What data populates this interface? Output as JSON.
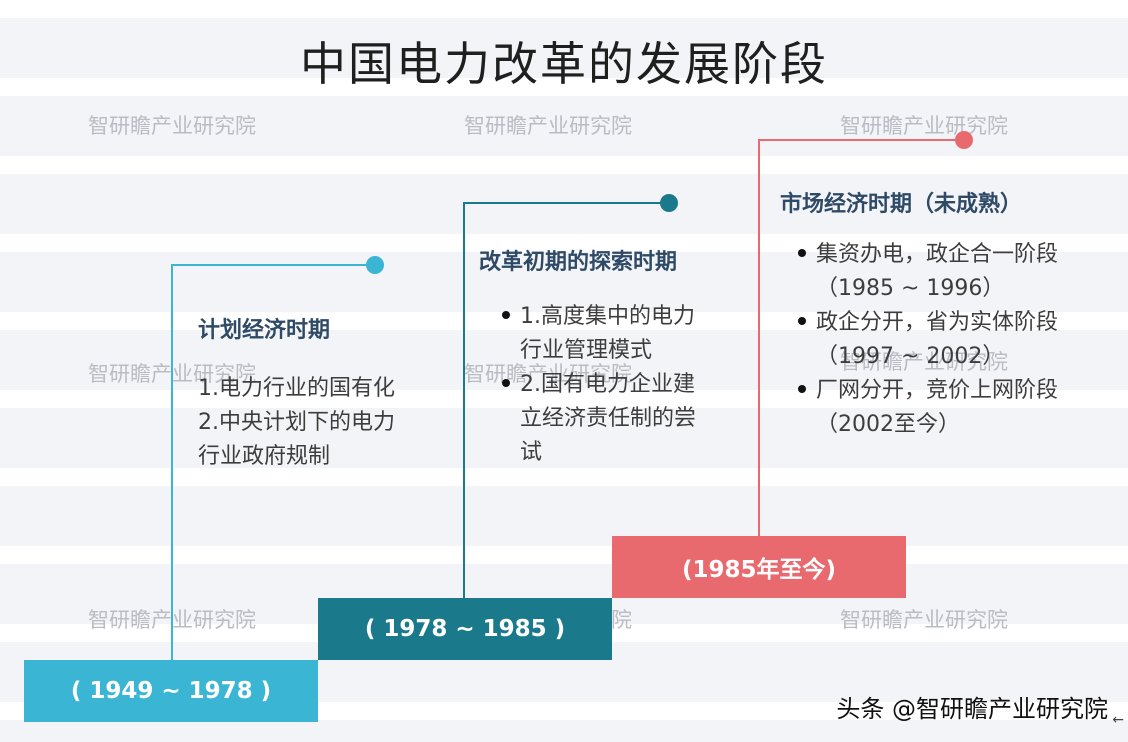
{
  "title": "中国电力改革的发展阶段",
  "watermark": "智研瞻产业研究院",
  "colors": {
    "stage1": "#3ab5d4",
    "stage2": "#1a7a8c",
    "stage3": "#e86a6f"
  },
  "stages": [
    {
      "heading": "计划经济时期",
      "period": "( 1949 ~ 1978 )",
      "items": [
        "1.电力行业的国有化",
        "2.中央计划下的电力行业政府规制"
      ]
    },
    {
      "heading": "改革初期的探索时期",
      "period": "( 1978 ~ 1985 )",
      "items": [
        "1.高度集中的电力行业管理模式",
        "2.国有电力企业建立经济责任制的尝试"
      ]
    },
    {
      "heading": "市场经济时期（未成熟）",
      "period": "(1985年至今)",
      "items": [
        "集资办电，政企合一阶段（1985 ~ 1996）",
        "政企分开，省为实体阶段（1997 ~ 2002）",
        "厂网分开，竞价上网阶段（2002至今）"
      ]
    }
  ],
  "footer": {
    "text": "头条 @智研瞻产业研究院",
    "icon": "back-arrow-icon"
  }
}
